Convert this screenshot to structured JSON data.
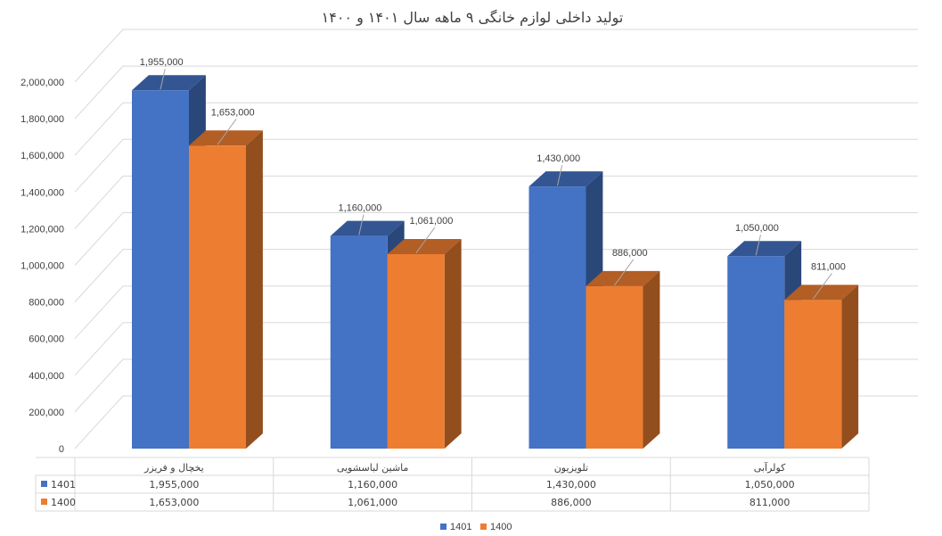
{
  "chart_data": {
    "type": "bar",
    "title": "تولید داخلی لوازم خانگی ۹ ماهه سال ۱۴۰۱ و ۱۴۰۰",
    "categories": [
      "یخچال و فریزر",
      "ماشین لباسشویی",
      "تلویزیون",
      "کولرآبی"
    ],
    "series": [
      {
        "name": "1401",
        "values": [
          1955000,
          1160000,
          1430000,
          1050000
        ],
        "color": "#4472c4",
        "value_labels": [
          "1,955,000",
          "1,160,000",
          "1,430,000",
          "1,050,000"
        ]
      },
      {
        "name": "1400",
        "values": [
          1653000,
          1061000,
          886000,
          811000
        ],
        "color": "#ed7d31",
        "value_labels": [
          "1,653,000",
          "1,061,000",
          "886,000",
          "811,000"
        ]
      }
    ],
    "ylim": [
      0,
      2000000
    ],
    "y_ticks": [
      0,
      200000,
      400000,
      600000,
      800000,
      1000000,
      1200000,
      1400000,
      1600000,
      1800000,
      2000000
    ],
    "y_tick_labels": [
      "0",
      "200,000",
      "400,000",
      "600,000",
      "800,000",
      "1,000,000",
      "1,200,000",
      "1,400,000",
      "1,600,000",
      "1,800,000",
      "2,000,000"
    ],
    "grid": true,
    "three_d": true,
    "data_table": true,
    "legend_position": "bottom"
  }
}
